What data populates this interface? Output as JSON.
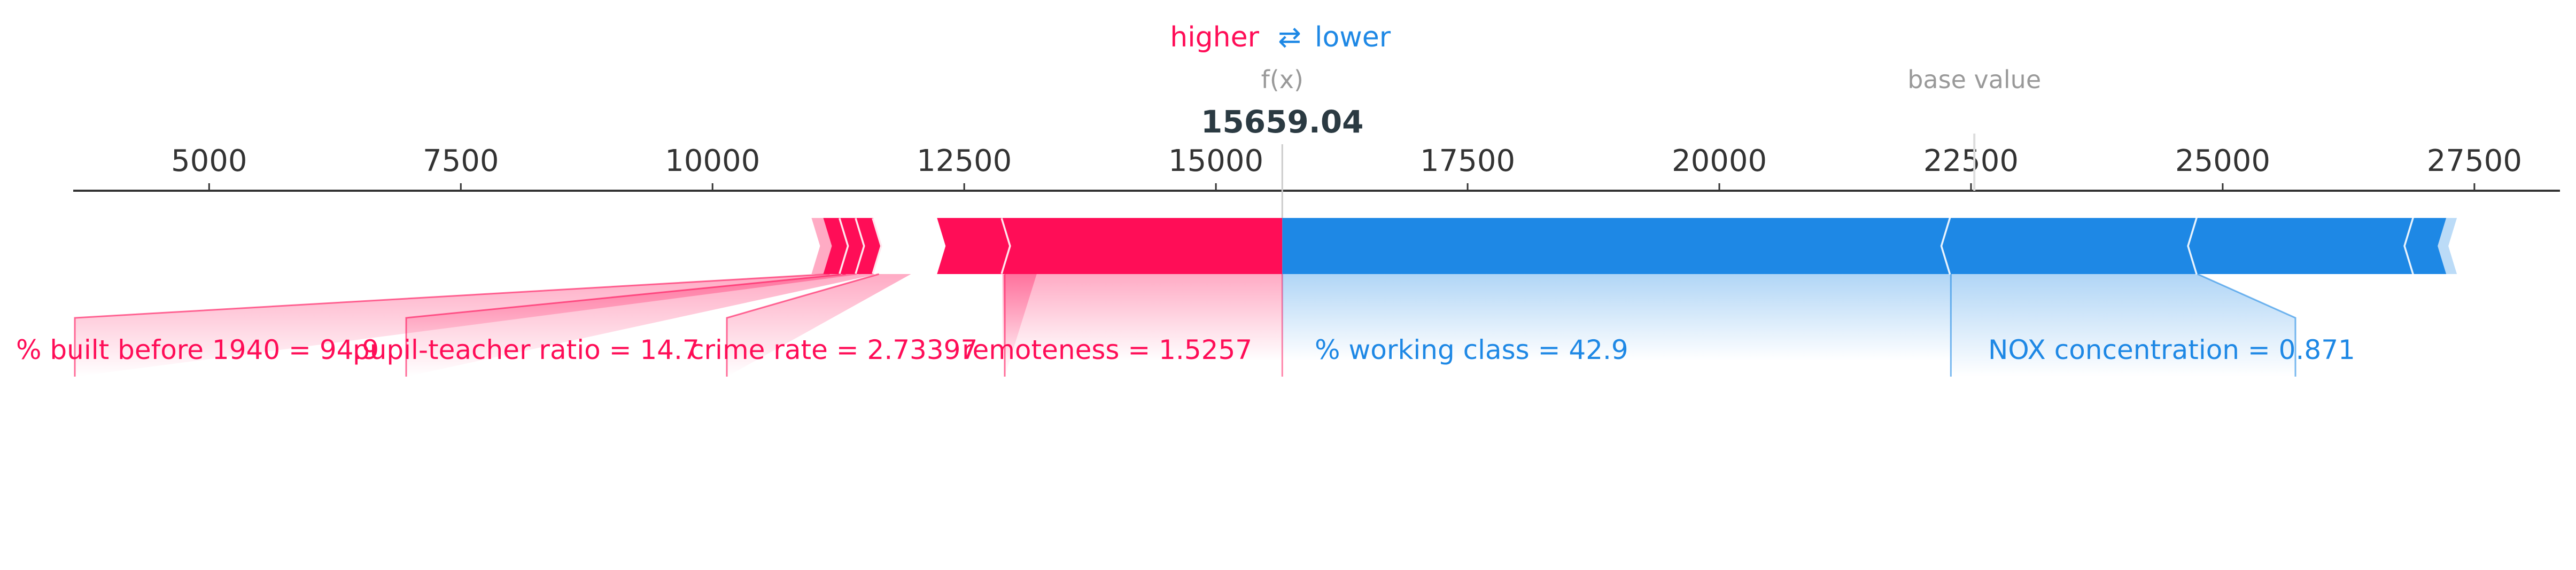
{
  "chart_data": {
    "type": "force",
    "legend": {
      "higher": "higher",
      "arrow": "⇄",
      "lower": "lower"
    },
    "output_label": "f(x)",
    "output_value": 15659.04,
    "output_value_text": "15659.04",
    "base_label": "base value",
    "base_value": 22533,
    "x_ticks": [
      5000,
      7500,
      10000,
      12500,
      15000,
      17500,
      20000,
      22500,
      25000,
      27500
    ],
    "x_tick_labels": [
      "5000",
      "7500",
      "10000",
      "12500",
      "15000",
      "17500",
      "20000",
      "22500",
      "25000",
      "27500"
    ],
    "xlim": [
      3650,
      28350
    ],
    "positive_features": [
      {
        "label": "% built before 1940 = 94.9",
        "start": 11100,
        "end": 11270
      },
      {
        "label": "pupil-teacher ratio = 14.7",
        "start": 11270,
        "end": 11430
      },
      {
        "label": "crime rate = 2.73397",
        "start": 11430,
        "end": 11600
      },
      {
        "label": "remoteness = 1.5257",
        "start": 12230,
        "end": 12880
      },
      {
        "label": "",
        "start": 12880,
        "end": 15659.04
      }
    ],
    "negative_features": [
      {
        "label": "% working class = 42.9",
        "start": 15659.04,
        "end": 22300
      },
      {
        "label": "NOX concentration = 0.871",
        "start": 22300,
        "end": 24750
      },
      {
        "label": "",
        "start": 24750,
        "end": 26900
      }
    ],
    "bar_end": 27220,
    "colors": {
      "positive": "#ff0d57",
      "negative": "#1e88e5",
      "axis": "#333333",
      "muted": "#999999",
      "value": "#2b3a42"
    }
  }
}
